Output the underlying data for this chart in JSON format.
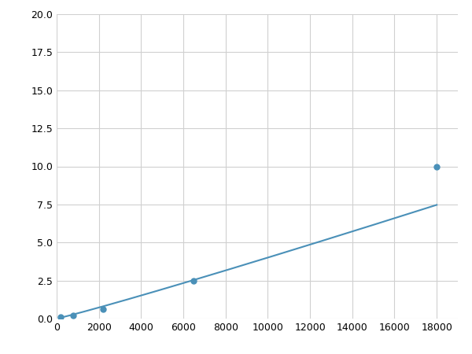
{
  "x_points": [
    200,
    500,
    800,
    2200,
    6500,
    18000
  ],
  "y_points": [
    0.1,
    0.15,
    0.2,
    0.6,
    2.5,
    10.0
  ],
  "marker_x": [
    200,
    800,
    2200,
    6500,
    18000
  ],
  "marker_y": [
    0.1,
    0.2,
    0.6,
    2.5,
    10.0
  ],
  "line_color": "#4a90b8",
  "marker_color": "#4a90b8",
  "marker_size": 5,
  "line_width": 1.5,
  "xlim": [
    0,
    19000
  ],
  "ylim": [
    0,
    20.0
  ],
  "xticks": [
    0,
    2000,
    4000,
    6000,
    8000,
    10000,
    12000,
    14000,
    16000,
    18000
  ],
  "yticks": [
    0.0,
    2.5,
    5.0,
    7.5,
    10.0,
    12.5,
    15.0,
    17.5,
    20.0
  ],
  "grid_color": "#d0d0d0",
  "background_color": "#ffffff",
  "fig_width": 6.0,
  "fig_height": 4.5
}
